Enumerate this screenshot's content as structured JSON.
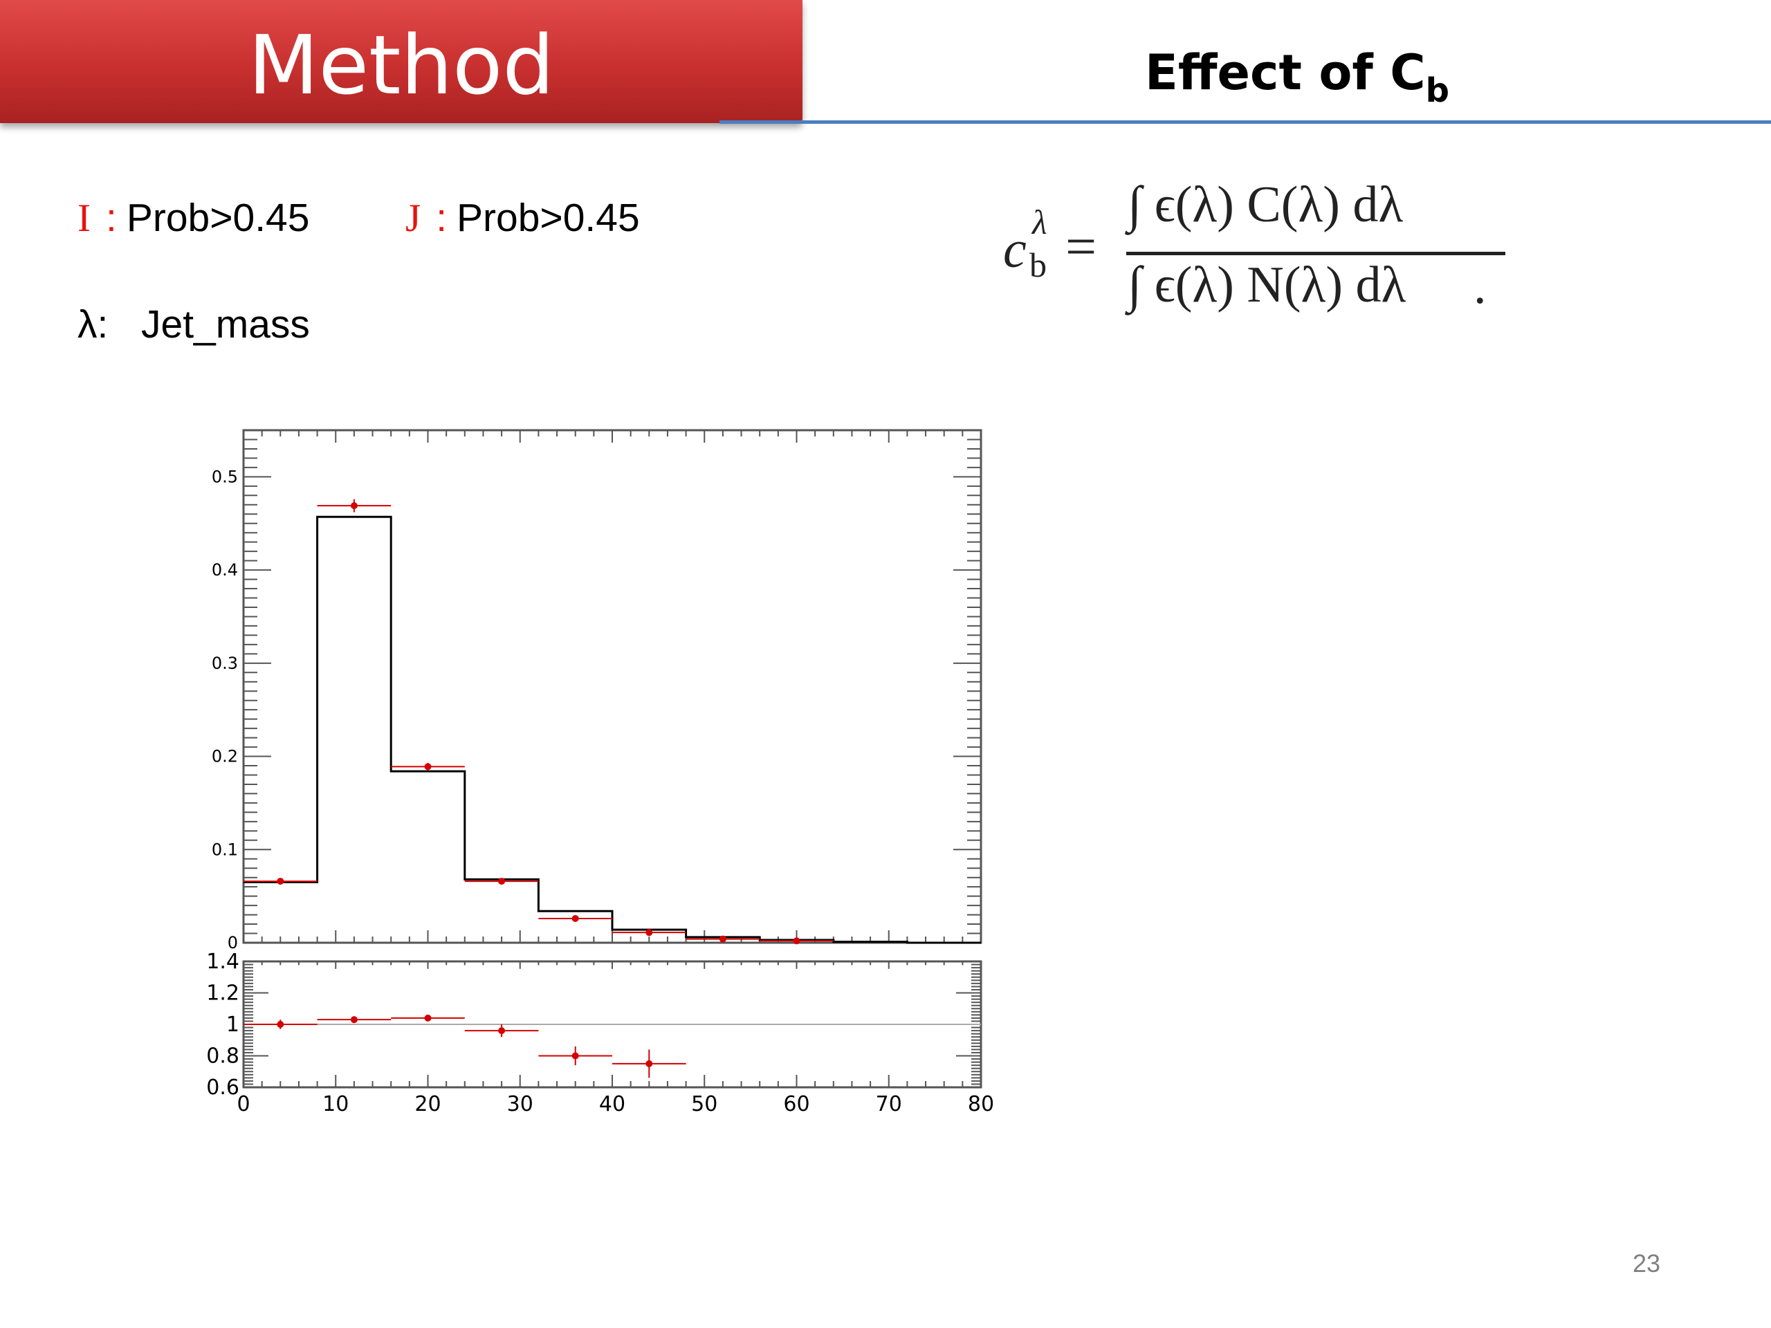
{
  "slide": {
    "title": "Method",
    "subtitle_main": "Effect of C",
    "subtitle_sub": "b",
    "page_number": "23"
  },
  "conditions": [
    {
      "letter": "I",
      "colon": ":",
      "text": "Prob>0.45"
    },
    {
      "letter": "J",
      "colon": ":",
      "text": "Prob>0.45"
    }
  ],
  "variable": {
    "symbol": "λ:",
    "name": "Jet_mass"
  },
  "formula": {
    "lhs": "c",
    "lhs_sup": "λ",
    "lhs_sub": "b",
    "eq": "=",
    "numerator": "∫ ϵ(λ) C(λ) dλ",
    "denominator": "∫ ϵ(λ) N(λ) dλ",
    "dot": "."
  },
  "colors": {
    "title_bg": "#c8302f",
    "accent_red": "#e8140c",
    "rule_blue": "#4a7fc0",
    "hist_line": "#000000",
    "points": "#d40000"
  },
  "chart_data": [
    {
      "type": "bar",
      "title": "",
      "xlabel": "",
      "ylabel": "",
      "x_edges": [
        0,
        8,
        16,
        24,
        32,
        40,
        48,
        56,
        64,
        72,
        80
      ],
      "xlim": [
        0,
        80
      ],
      "ylim": [
        0,
        0.55
      ],
      "yticks": [
        "0",
        "0.1",
        "0.2",
        "0.3",
        "0.4",
        "0.5"
      ],
      "series": [
        {
          "style": "histogram",
          "values": [
            0.065,
            0.457,
            0.184,
            0.068,
            0.034,
            0.014,
            0.006,
            0.003,
            0.001,
            0.0
          ]
        },
        {
          "style": "points",
          "values": [
            0.066,
            0.469,
            0.189,
            0.066,
            0.026,
            0.011,
            0.004,
            0.002,
            0.0,
            0.0
          ],
          "errors": [
            0.002,
            0.007,
            0.004,
            0.003,
            0.002,
            0.001,
            0.001,
            0.0,
            0.0,
            0.0
          ]
        }
      ]
    },
    {
      "type": "scatter",
      "title": "",
      "xlabel": "",
      "ylabel": "",
      "x_edges": [
        0,
        8,
        16,
        24,
        32,
        40,
        48
      ],
      "xlim": [
        0,
        80
      ],
      "ylim": [
        0.6,
        1.4
      ],
      "xticks": [
        "0",
        "10",
        "20",
        "30",
        "40",
        "50",
        "60",
        "70",
        "80"
      ],
      "yticks": [
        "0.6",
        "0.8",
        "1",
        "1.2",
        "1.4"
      ],
      "reference_line": 1,
      "series": [
        {
          "style": "points",
          "values": [
            1.0,
            1.03,
            1.04,
            0.96,
            0.8,
            0.75
          ],
          "errors": [
            0.03,
            0.015,
            0.02,
            0.04,
            0.06,
            0.09
          ]
        }
      ]
    }
  ]
}
